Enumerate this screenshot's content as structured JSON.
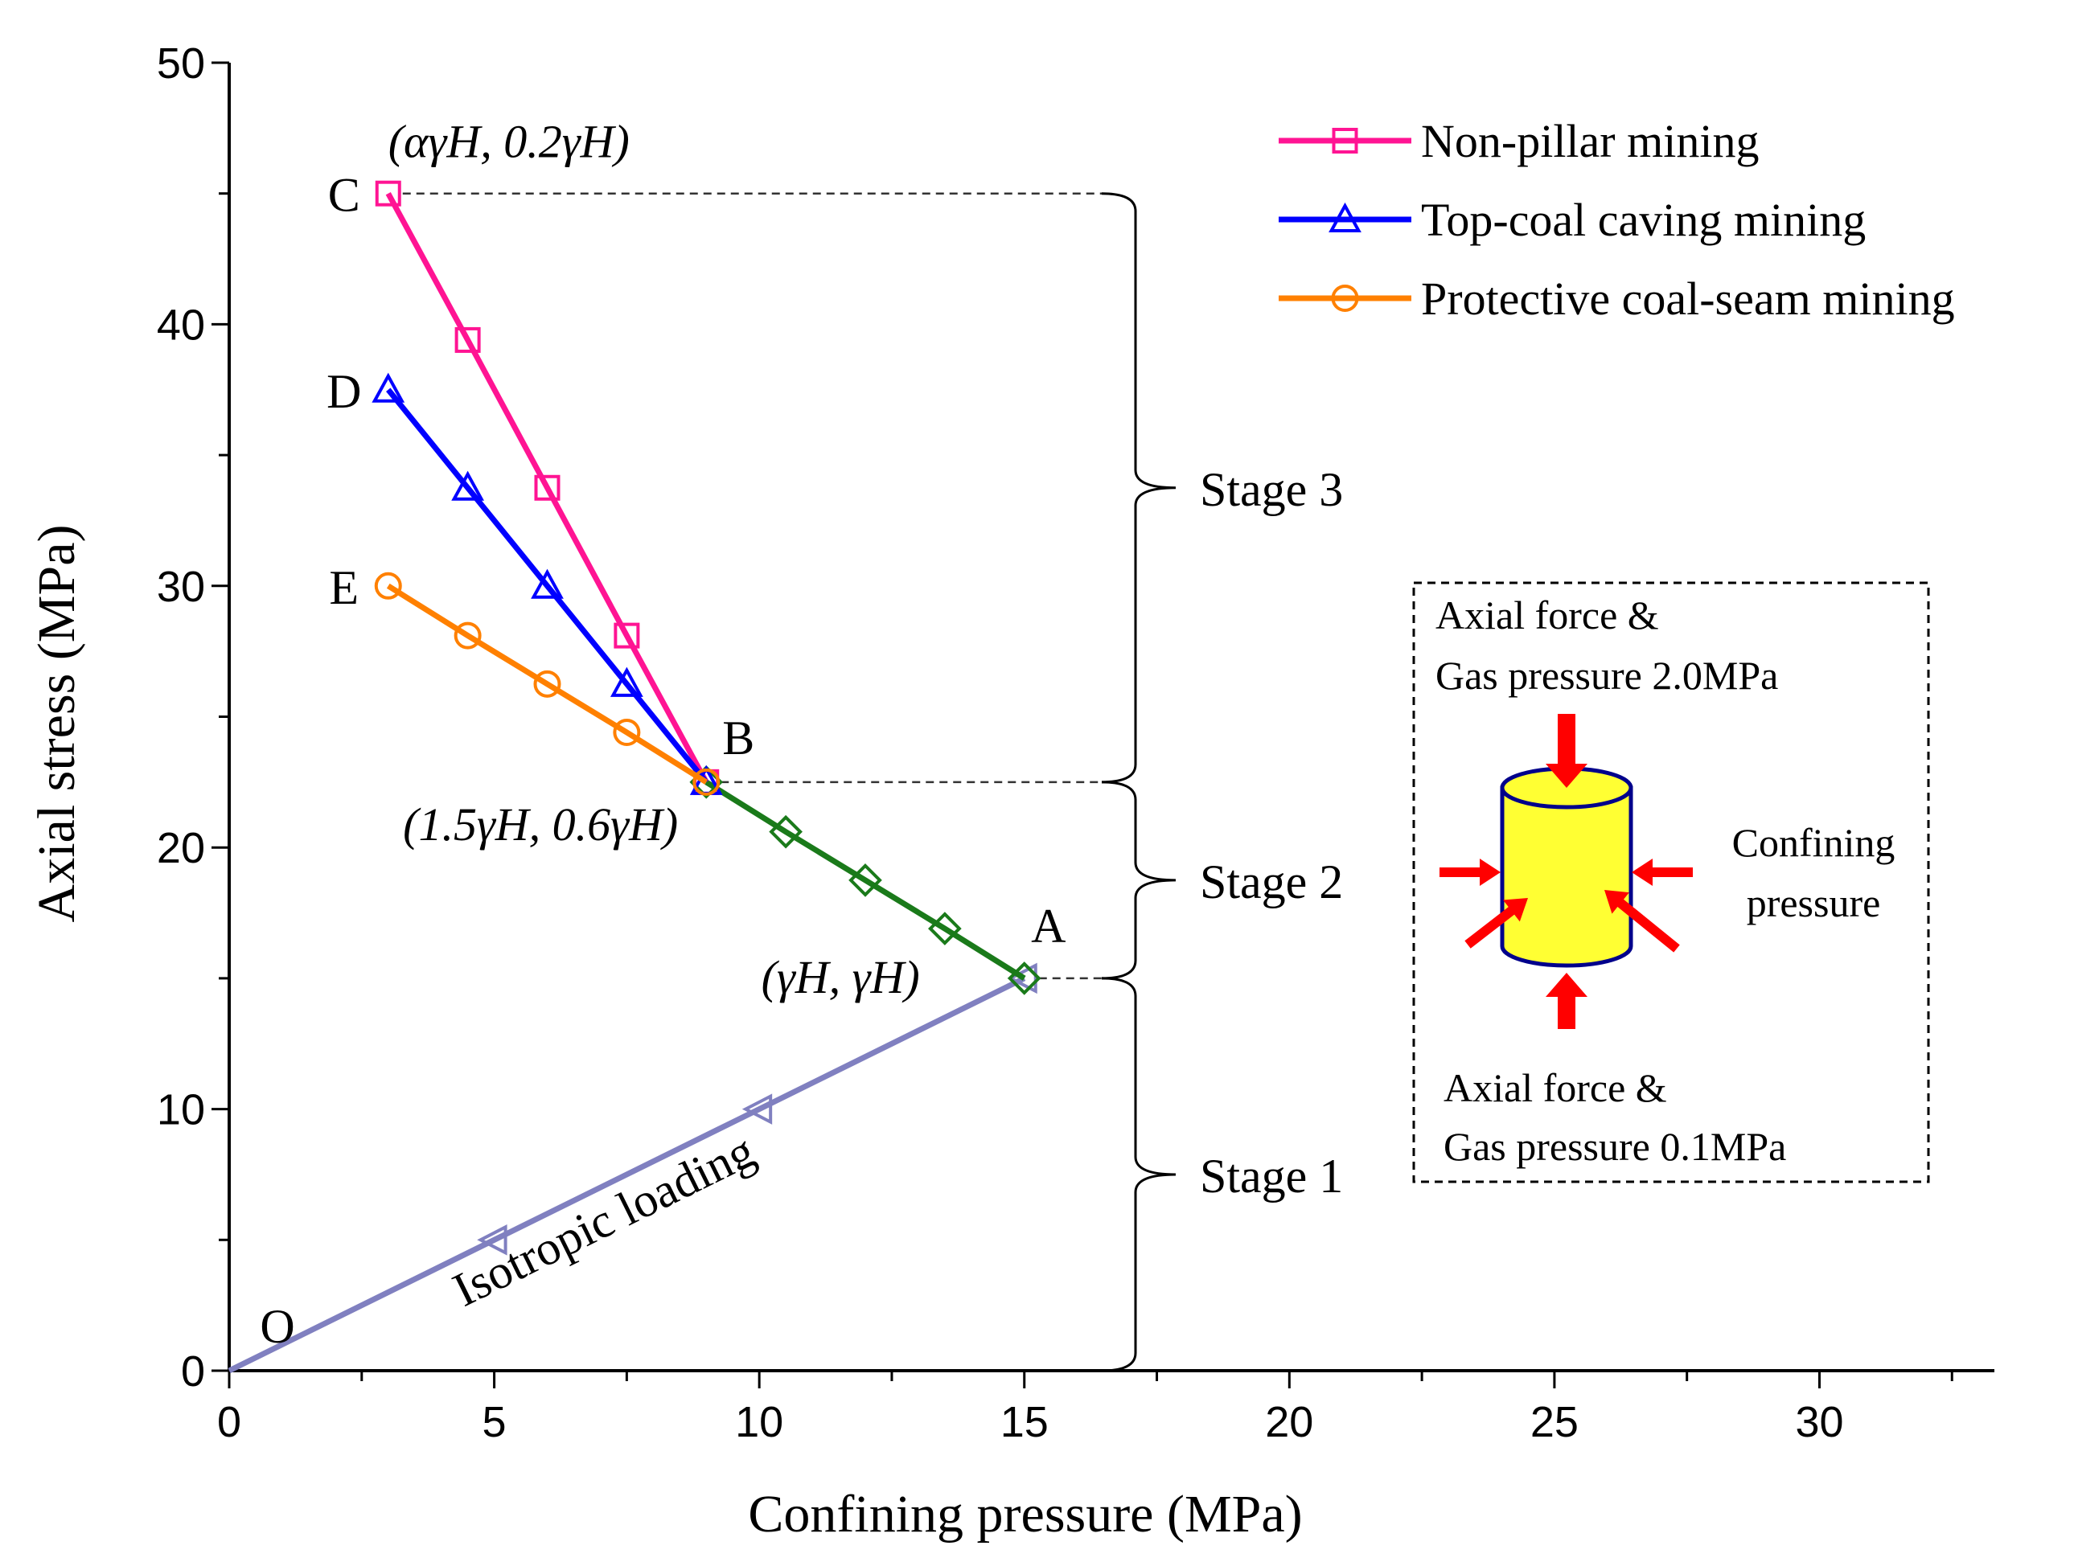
{
  "chart_data": {
    "type": "line",
    "xlabel": "Confining pressure (MPa)",
    "ylabel": "Axial stress (MPa)",
    "xlim": [
      0,
      33.3
    ],
    "ylim": [
      0,
      50
    ],
    "xticks": [
      0,
      5,
      10,
      15,
      20,
      25,
      30
    ],
    "yticks": [
      0,
      10,
      20,
      30,
      40,
      50
    ],
    "grid": false,
    "legend_position": "top-right",
    "series": [
      {
        "name": "Isotropic loading",
        "color": "#8080c0",
        "marker": "triangle-left",
        "in_legend": false,
        "x": [
          0,
          5,
          10,
          15
        ],
        "y": [
          0,
          5,
          10,
          15
        ]
      },
      {
        "name": "Stage 2 path",
        "color": "#1a7a1a",
        "marker": "diamond",
        "in_legend": false,
        "x": [
          9,
          10.5,
          12,
          13.5,
          15
        ],
        "y": [
          22.5,
          20.6,
          18.75,
          16.9,
          15
        ]
      },
      {
        "name": "Non-pillar mining",
        "color": "#ff1493",
        "marker": "square",
        "in_legend": true,
        "x": [
          3,
          4.5,
          6,
          7.5,
          9
        ],
        "y": [
          45,
          39.4,
          33.75,
          28.1,
          22.5
        ]
      },
      {
        "name": "Top-coal caving mining",
        "color": "#0000ff",
        "marker": "triangle-up",
        "in_legend": true,
        "x": [
          3,
          4.5,
          6,
          7.5,
          9
        ],
        "y": [
          37.5,
          33.75,
          30,
          26.25,
          22.5
        ]
      },
      {
        "name": "Protective coal-seam mining",
        "color": "#ff8000",
        "marker": "circle",
        "in_legend": true,
        "x": [
          3,
          4.5,
          6,
          7.5,
          9
        ],
        "y": [
          30,
          28.1,
          26.25,
          24.4,
          22.5
        ]
      }
    ],
    "point_labels": [
      {
        "text": "O",
        "x": 0,
        "y": 0
      },
      {
        "text": "A",
        "x": 15,
        "y": 15
      },
      {
        "text": "B",
        "x": 9,
        "y": 22.5
      },
      {
        "text": "C",
        "x": 3,
        "y": 45
      },
      {
        "text": "D",
        "x": 3,
        "y": 37.5
      },
      {
        "text": "E",
        "x": 3,
        "y": 30
      }
    ],
    "coordinate_labels": {
      "A": "(γH, γH)",
      "B": "(1.5γH, 0.6γH)",
      "C": "(αγH, 0.2γH)"
    },
    "line_label": "Isotropic loading",
    "stages": [
      {
        "name": "Stage 3",
        "y_from": 22.5,
        "y_to": 45
      },
      {
        "name": "Stage 2",
        "y_from": 15,
        "y_to": 22.5
      },
      {
        "name": "Stage 1",
        "y_from": 0,
        "y_to": 15
      }
    ]
  },
  "inset": {
    "top_label_line1": "Axial force &",
    "top_label_line2": "Gas pressure 2.0MPa",
    "side_label_line1": "Confining",
    "side_label_line2": "pressure",
    "bottom_label_line1": "Axial force &",
    "bottom_label_line2": "Gas pressure 0.1MPa",
    "sample_color": "#ffff33",
    "outline_color": "#00008b",
    "arrow_color": "#ff0000"
  }
}
